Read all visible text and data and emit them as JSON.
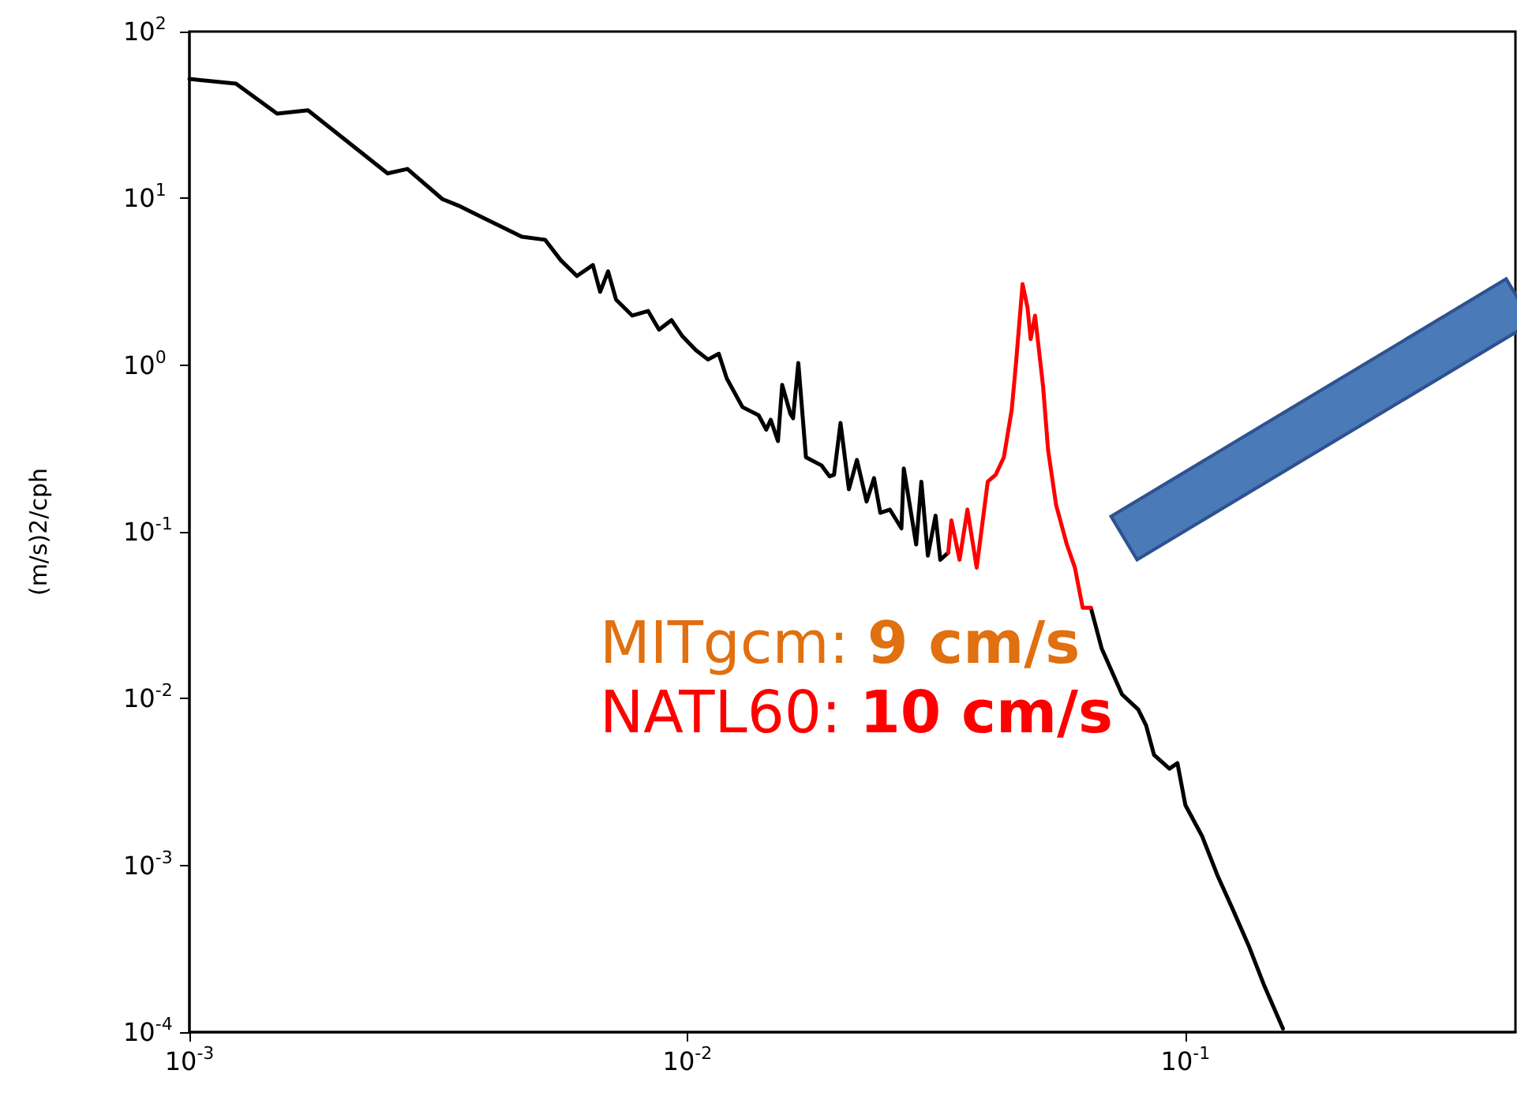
{
  "chart_data": {
    "type": "line",
    "ylabel": "(m/s)2/cph",
    "log": "xy",
    "grid": false,
    "marker": "none",
    "line_style": "solid",
    "xlim": [
      0.001,
      0.46
    ],
    "ylim": [
      0.0001,
      100
    ],
    "xticks": [
      {
        "value": 0.001,
        "label": "10$^{-3}$"
      },
      {
        "value": 0.01,
        "label": "10$^{-2}$"
      },
      {
        "value": 0.1,
        "label": "10$^{-1}$"
      }
    ],
    "yticks": [
      {
        "value": 0.0001,
        "label": "10$^{-4}$"
      },
      {
        "value": 0.001,
        "label": "10$^{-3}$"
      },
      {
        "value": 0.01,
        "label": "10$^{-2}$"
      },
      {
        "value": 0.1,
        "label": "10$^{-1}$"
      },
      {
        "value": 1,
        "label": "10$^{0}$"
      },
      {
        "value": 10,
        "label": "10$^{1}$"
      },
      {
        "value": 100,
        "label": "10$^{2}$"
      }
    ],
    "annotations": [
      "MITgcm: 9 cm/s",
      "NATL60: 10 cm/s"
    ],
    "series": [
      {
        "color": "#000000",
        "x": [
          0.001,
          0.00124,
          0.0015,
          0.00173,
          0.0025,
          0.00274,
          0.00322,
          0.00347,
          0.00372,
          0.00465,
          0.00518,
          0.00557,
          0.006,
          0.00646,
          0.00668,
          0.00693,
          0.00719,
          0.00775,
          0.00834,
          0.00877,
          0.00929,
          0.00977,
          0.0104,
          0.011,
          0.01156,
          0.012,
          0.0129,
          0.0139,
          0.0144,
          0.0147,
          0.0152,
          0.0155,
          0.0161,
          0.0163,
          0.0167,
          0.0173,
          0.0186,
          0.0193,
          0.0197,
          0.0203,
          0.0211,
          0.0219,
          0.0229,
          0.0237,
          0.0244,
          0.0255,
          0.0269,
          0.0272,
          0.0288,
          0.0295,
          0.0304,
          0.0315,
          0.0322,
          0.0334,
          0.045,
          0.0646,
          0.0679,
          0.0746,
          0.0804,
          0.0834,
          0.0865,
          0.0929,
          0.0964,
          0.1,
          0.108,
          0.116,
          0.124,
          0.134,
          0.144,
          0.157
        ],
        "values": [
          52.0,
          48.7,
          32.2,
          33.7,
          14.1,
          15.0,
          9.9,
          9.04,
          8.17,
          5.89,
          5.64,
          4.25,
          3.42,
          3.98,
          2.75,
          3.65,
          2.47,
          1.98,
          2.11,
          1.63,
          1.86,
          1.49,
          1.23,
          1.08,
          1.17,
          0.83,
          0.56,
          0.5,
          0.41,
          0.47,
          0.35,
          0.76,
          0.51,
          0.48,
          1.03,
          0.28,
          0.25,
          0.215,
          0.22,
          0.45,
          0.18,
          0.27,
          0.152,
          0.21,
          0.13,
          0.136,
          0.105,
          0.24,
          0.084,
          0.2,
          0.072,
          0.125,
          0.068,
          0.075,
          null,
          0.035,
          0.02,
          0.0106,
          0.0086,
          0.0069,
          0.0046,
          0.0038,
          0.0041,
          0.0023,
          0.0015,
          0.00087,
          0.00056,
          0.00033,
          0.00019,
          0.000105
        ]
      },
      {
        "color": "#ff0000",
        "x": [
          0.0334,
          0.0339,
          0.0352,
          0.0365,
          0.0381,
          0.0401,
          0.0416,
          0.0432,
          0.0448,
          0.0457,
          0.0471,
          0.0482,
          0.0489,
          0.0499,
          0.0518,
          0.053,
          0.055,
          0.0578,
          0.06,
          0.0622,
          0.0646
        ],
        "values": [
          0.075,
          0.117,
          0.068,
          0.136,
          0.061,
          0.2,
          0.22,
          0.28,
          0.54,
          1.03,
          3.06,
          2.21,
          1.43,
          1.98,
          0.74,
          0.31,
          0.145,
          0.084,
          0.061,
          0.035,
          0.035
        ]
      }
    ]
  }
}
